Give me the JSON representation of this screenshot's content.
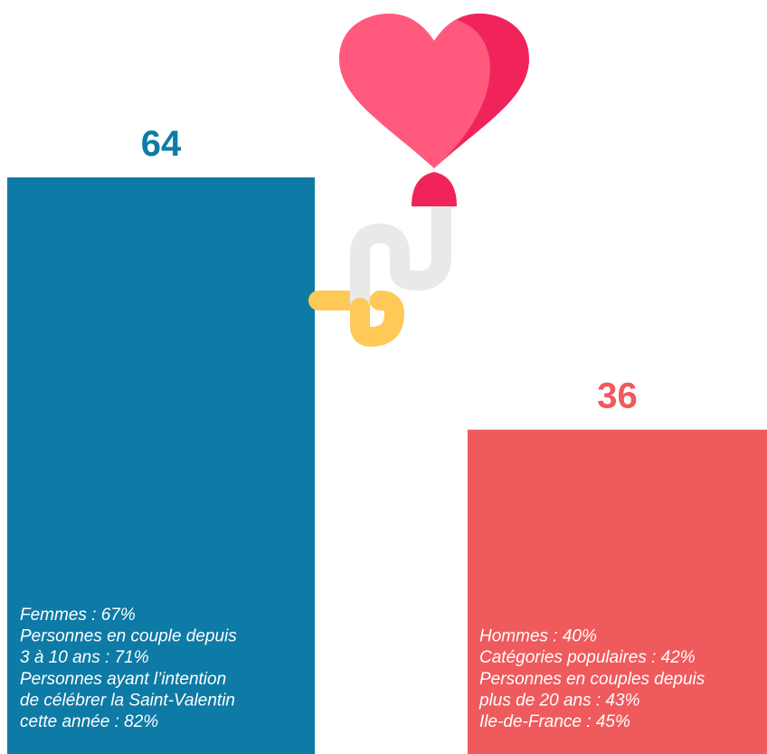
{
  "chart_data": {
    "type": "bar",
    "values": [
      64,
      36
    ],
    "colors": [
      "#0e7aa6",
      "#ef5a5c"
    ],
    "annotations": [
      [
        "Femmes : 67%",
        "Personnes en couple depuis",
        "3 à 10 ans : 71%",
        "Personnes ayant l’intention",
        "de célébrer la Saint-Valentin",
        "cette année : 82%"
      ],
      [
        "Hommes : 40%",
        "Catégories populaires : 42%",
        "Personnes en couples depuis",
        "plus de 20 ans : 43%",
        "Ile-de-France : 45%"
      ]
    ]
  }
}
